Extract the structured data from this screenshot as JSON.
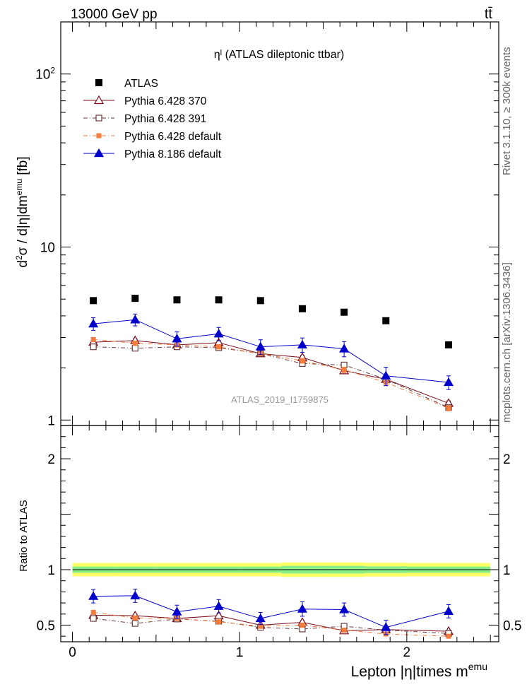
{
  "header": {
    "left": "13000 GeV pp",
    "right": "tt̄"
  },
  "side": {
    "rivet": "Rivet 3.1.10, ≥ 300k events",
    "mcplots": "mcplots.cern.ch [arXiv:1306.3436]"
  },
  "title": "ηˡ (ATLAS dileptonic ttbar)",
  "analysis_tag": "ATLAS_2019_I1759875",
  "colors": {
    "atlas": "#000000",
    "p6_370": "#7a0a1a",
    "p6_391": "#6b3a3a",
    "p6_default": "#f47c3c",
    "p8_default": "#0000cc",
    "band_inner": "#88ee88",
    "band_outer": "#ffff66"
  },
  "chart_data": [
    {
      "type": "scatter",
      "panel": "main",
      "ylabel": "d²σ / d|η|dm^emu [fb]",
      "yscale": "log",
      "ylim": [
        0.93,
        200
      ],
      "y_ticklabels": [
        "1",
        "10",
        "10²"
      ],
      "xlim": [
        -0.07,
        2.55
      ],
      "x": [
        0.125,
        0.375,
        0.625,
        0.875,
        1.125,
        1.375,
        1.625,
        1.875,
        2.25
      ],
      "xerr_half": [
        0.125,
        0.125,
        0.125,
        0.125,
        0.125,
        0.125,
        0.125,
        0.125,
        0.25
      ],
      "legend": "top-left",
      "series": [
        {
          "name": "ATLAS",
          "key": "atlas",
          "values": [
            4.9,
            5.05,
            4.95,
            4.95,
            4.9,
            4.4,
            4.2,
            3.75,
            2.72
          ],
          "errors": [
            0,
            0,
            0,
            0,
            0,
            0,
            0,
            0,
            0
          ]
        },
        {
          "name": "Pythia 6.428 370",
          "key": "p6_370",
          "values": [
            2.82,
            2.88,
            2.72,
            2.8,
            2.42,
            2.3,
            1.93,
            1.72,
            1.25
          ],
          "errors": [
            0.08,
            0.08,
            0.08,
            0.08,
            0.07,
            0.07,
            0.07,
            0.07,
            0.04
          ]
        },
        {
          "name": "Pythia 6.428 391",
          "key": "p6_391",
          "values": [
            2.65,
            2.6,
            2.65,
            2.62,
            2.42,
            2.12,
            2.08,
            1.72,
            1.18
          ],
          "errors": [
            0.08,
            0.08,
            0.08,
            0.08,
            0.07,
            0.07,
            0.07,
            0.07,
            0.04
          ]
        },
        {
          "name": "Pythia 6.428 default",
          "key": "p6_default",
          "values": [
            2.92,
            2.78,
            2.72,
            2.65,
            2.42,
            2.2,
            1.95,
            1.65,
            1.17
          ],
          "errors": [
            0.08,
            0.08,
            0.08,
            0.08,
            0.07,
            0.07,
            0.07,
            0.07,
            0.04
          ]
        },
        {
          "name": "Pythia 8.186 default",
          "key": "p8_default",
          "values": [
            3.6,
            3.8,
            2.95,
            3.15,
            2.65,
            2.72,
            2.58,
            1.8,
            1.65
          ],
          "errors": [
            0.3,
            0.3,
            0.28,
            0.28,
            0.26,
            0.26,
            0.26,
            0.22,
            0.15
          ]
        }
      ]
    },
    {
      "type": "scatter",
      "panel": "ratio",
      "ylabel": "Ratio to ATLAS",
      "xlabel": "Lepton |η|times m^emu",
      "ylim": [
        0.35,
        2.3
      ],
      "y_ticklabels": [
        "0.5",
        "1",
        "2"
      ],
      "xlim": [
        -0.07,
        2.55
      ],
      "x_ticklabels": [
        "0",
        "1",
        "2"
      ],
      "band_inner_halfwidth": [
        0.028,
        0.028,
        0.028,
        0.028,
        0.028,
        0.034,
        0.034,
        0.03,
        0.028
      ],
      "band_outer_halfwidth": [
        0.06,
        0.06,
        0.06,
        0.06,
        0.06,
        0.065,
        0.065,
        0.062,
        0.06
      ],
      "series": [
        {
          "name": "Pythia 6.428 370",
          "key": "p6_370",
          "values": [
            0.59,
            0.585,
            0.56,
            0.585,
            0.5,
            0.525,
            0.45,
            0.46,
            0.445
          ],
          "errors": [
            0.015,
            0.015,
            0.015,
            0.015,
            0.015,
            0.015,
            0.015,
            0.015,
            0.01
          ]
        },
        {
          "name": "Pythia 6.428 391",
          "key": "p6_391",
          "values": [
            0.56,
            0.515,
            0.555,
            0.535,
            0.48,
            0.465,
            0.49,
            0.455,
            0.425
          ],
          "errors": [
            0.015,
            0.015,
            0.015,
            0.015,
            0.015,
            0.015,
            0.015,
            0.015,
            0.01
          ]
        },
        {
          "name": "Pythia 6.428 default",
          "key": "p6_default",
          "values": [
            0.615,
            0.565,
            0.56,
            0.53,
            0.49,
            0.5,
            0.455,
            0.42,
            0.4
          ],
          "errors": [
            0.015,
            0.015,
            0.015,
            0.015,
            0.015,
            0.015,
            0.015,
            0.015,
            0.01
          ]
        },
        {
          "name": "Pythia 8.186 default",
          "key": "p8_default",
          "values": [
            0.76,
            0.765,
            0.62,
            0.67,
            0.56,
            0.645,
            0.64,
            0.48,
            0.625
          ],
          "errors": [
            0.06,
            0.06,
            0.06,
            0.06,
            0.055,
            0.065,
            0.06,
            0.065,
            0.06
          ]
        }
      ]
    }
  ]
}
